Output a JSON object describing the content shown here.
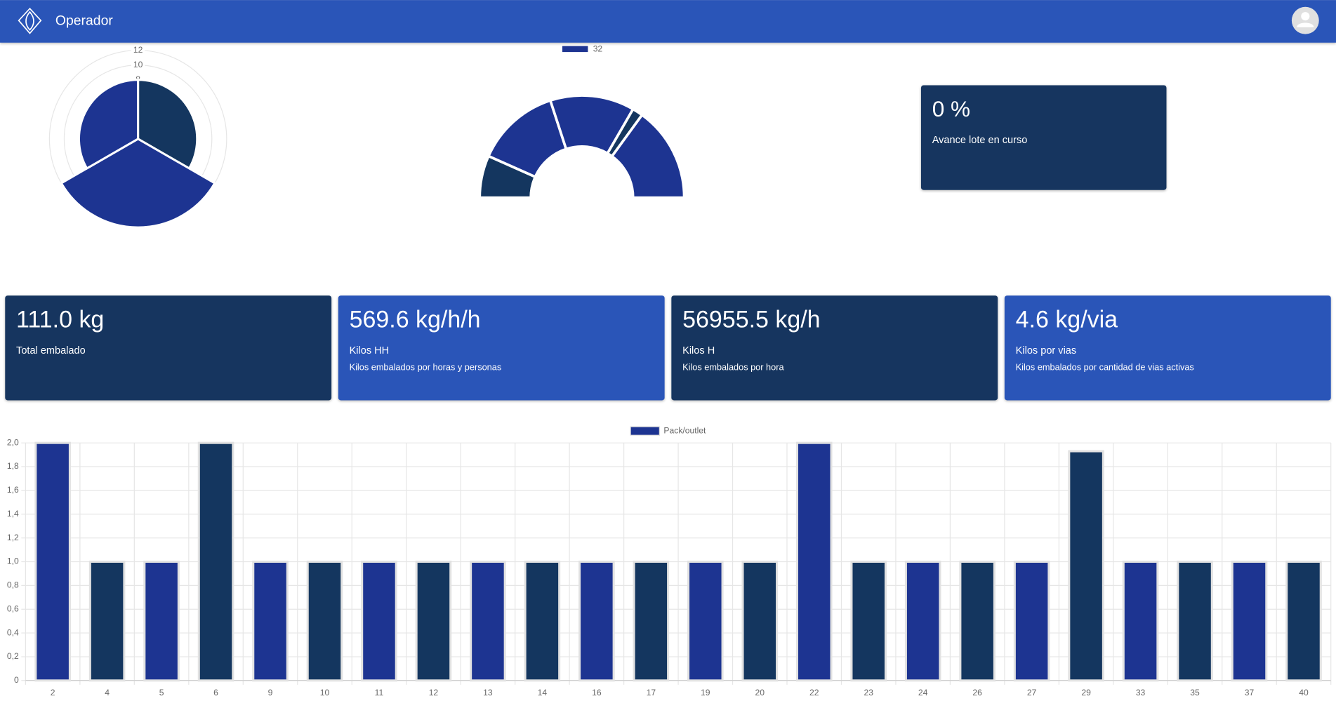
{
  "header": {
    "title": "Operador"
  },
  "progress_card": {
    "value": "0 %",
    "label": "Avance lote en curso"
  },
  "kpi_cards": [
    {
      "value": "111.0 kg",
      "label": "Total embalado"
    },
    {
      "value": "569.6 kg/h/h",
      "label": "Kilos HH",
      "description": "Kilos embalados por horas y personas"
    },
    {
      "value": "56955.5 kg/h",
      "label": "Kilos H",
      "description": "Kilos embalados por hora"
    },
    {
      "value": "4.6 kg/via",
      "label": "Kilos por vias",
      "description": "Kilos embalados por cantidad de vias activas"
    }
  ],
  "chart_data": [
    {
      "type": "polarArea",
      "values": [
        8,
        12,
        8
      ],
      "colors": [
        "#14365f",
        "#1d3491",
        "#1d3491"
      ],
      "rlim": [
        0,
        12
      ],
      "rticks": [
        8,
        10,
        12
      ],
      "grid": true
    },
    {
      "type": "doughnut",
      "half": true,
      "series": [
        {
          "name": "32",
          "color": "#1d3491",
          "values": [
            4,
            8,
            8,
            1,
            9
          ],
          "colors": [
            "#14365f",
            "#1d3491",
            "#1d3491",
            "#14365f",
            "#1d3491"
          ]
        }
      ]
    },
    {
      "type": "bar",
      "categories": [
        "2",
        "4",
        "5",
        "6",
        "9",
        "10",
        "11",
        "12",
        "13",
        "14",
        "16",
        "17",
        "19",
        "20",
        "22",
        "23",
        "24",
        "26",
        "27",
        "29",
        "33",
        "35",
        "37",
        "40"
      ],
      "series": [
        {
          "name": "Pack/outlet",
          "color": "#1d3491",
          "values": [
            2,
            1,
            1,
            2,
            1,
            1,
            1,
            1,
            1,
            1,
            1,
            1,
            1,
            1,
            2,
            1,
            1,
            1,
            1,
            1.93,
            1,
            1,
            1,
            1
          ],
          "colors": [
            "#1d3491",
            "#14365f",
            "#1d3491",
            "#14365f",
            "#1d3491",
            "#14365f",
            "#1d3491",
            "#14365f",
            "#1d3491",
            "#14365f",
            "#1d3491",
            "#14365f",
            "#1d3491",
            "#14365f",
            "#1d3491",
            "#14365f",
            "#1d3491",
            "#14365f",
            "#1d3491",
            "#14365f",
            "#1d3491",
            "#14365f",
            "#1d3491",
            "#14365f"
          ]
        }
      ],
      "ylim": [
        0,
        2
      ],
      "yticks": [
        0,
        {
          "value": 0.2,
          "label": "0,2"
        },
        {
          "value": 0.4,
          "label": "0,4"
        },
        {
          "value": 0.6,
          "label": "0,6"
        },
        {
          "value": 0.8,
          "label": "0,8"
        },
        {
          "value": 1,
          "label": "1,0"
        },
        {
          "value": 1.2,
          "label": "1,2"
        },
        {
          "value": 1.4,
          "label": "1,4"
        },
        {
          "value": 1.6,
          "label": "1,6"
        },
        {
          "value": 1.8,
          "label": "1,8"
        },
        {
          "value": 2,
          "label": "2,0"
        }
      ],
      "grid": true
    }
  ]
}
